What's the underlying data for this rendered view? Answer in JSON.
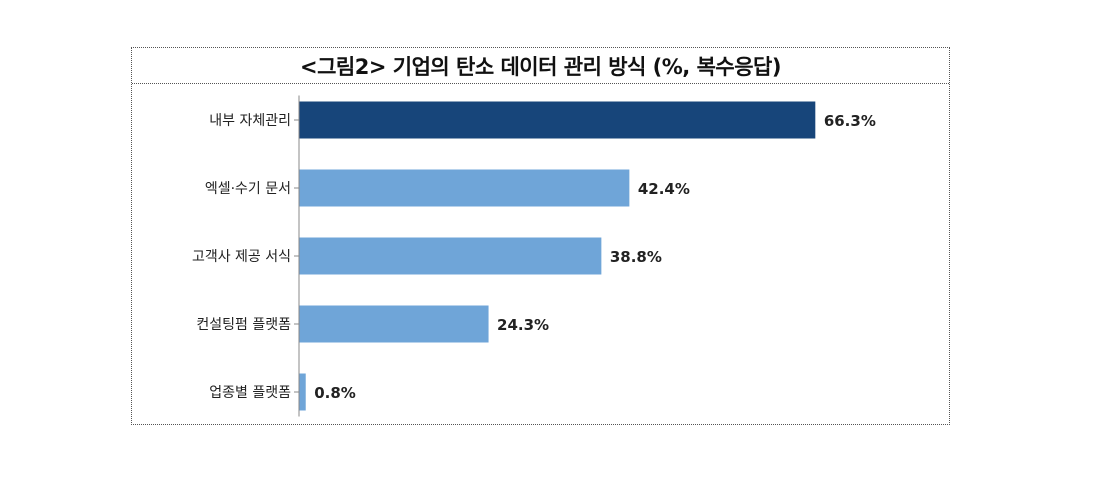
{
  "chart_data": {
    "type": "bar",
    "orientation": "horizontal",
    "title": "<그림2> 기업의 탄소 데이터 관리 방식 (%, 복수응답)",
    "categories": [
      "내부 자체관리",
      "엑셀·수기 문서",
      "고객사 제공 서식",
      "컨설팅펌 플랫폼",
      "업종별 플랫폼"
    ],
    "values": [
      66.3,
      42.4,
      38.8,
      24.3,
      0.8
    ],
    "value_labels": [
      "66.3%",
      "42.4%",
      "38.8%",
      "24.3%",
      "0.8%"
    ],
    "xlim": [
      0,
      100
    ],
    "grid": false,
    "legend": "none",
    "colors": {
      "highlight": "#17457a",
      "default": "#6fa5d8",
      "axis": "#888888"
    }
  }
}
